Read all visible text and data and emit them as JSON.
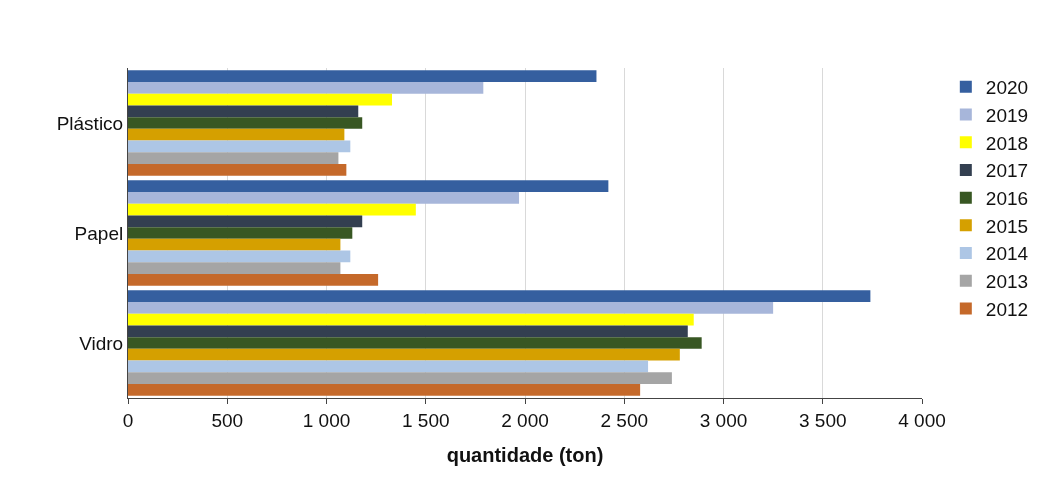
{
  "chart_data": {
    "type": "bar",
    "orientation": "horizontal",
    "xlabel": "quantidade (ton)",
    "categories": [
      "Plástico",
      "Papel",
      "Vidro"
    ],
    "series": [
      {
        "name": "2020",
        "color": "#355f9f",
        "values": [
          2360,
          2420,
          3740
        ]
      },
      {
        "name": "2019",
        "color": "#a7b6da",
        "values": [
          1790,
          1970,
          3250
        ]
      },
      {
        "name": "2018",
        "color": "#ffff00",
        "values": [
          1330,
          1450,
          2850
        ]
      },
      {
        "name": "2017",
        "color": "#333f50",
        "values": [
          1160,
          1180,
          2820
        ]
      },
      {
        "name": "2016",
        "color": "#385723",
        "values": [
          1180,
          1130,
          2890
        ]
      },
      {
        "name": "2015",
        "color": "#d5a000",
        "values": [
          1090,
          1070,
          2780
        ]
      },
      {
        "name": "2014",
        "color": "#adc6e5",
        "values": [
          1120,
          1120,
          2620
        ]
      },
      {
        "name": "2013",
        "color": "#a5a5a5",
        "values": [
          1060,
          1070,
          2740
        ]
      },
      {
        "name": "2012",
        "color": "#c5692a",
        "values": [
          1100,
          1260,
          2580
        ]
      }
    ],
    "xlim": [
      0,
      4000
    ],
    "xticks": [
      0,
      500,
      {
        "value": 1000,
        "label": "1 000"
      },
      {
        "value": 1500,
        "label": "1 500"
      },
      {
        "value": 2000,
        "label": "2 000"
      },
      {
        "value": 2500,
        "label": "2 500"
      },
      {
        "value": 3000,
        "label": "3 000"
      },
      {
        "value": 3500,
        "label": "3 500"
      },
      {
        "value": 4000,
        "label": "4 000"
      }
    ],
    "grid": "x",
    "legend": "right"
  }
}
